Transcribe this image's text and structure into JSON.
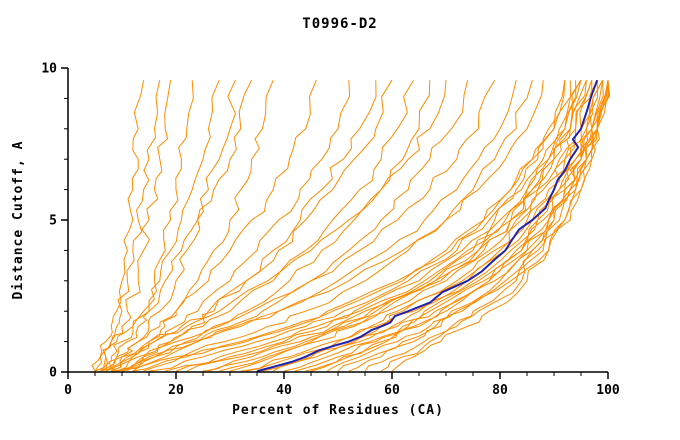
{
  "title": "T0996-D2",
  "chart_data": {
    "type": "line",
    "title": "T0996-D2",
    "xlabel": "Percent of Residues (CA)",
    "ylabel": "Distance Cutoff, A",
    "xlim": [
      0,
      100
    ],
    "ylim": [
      0,
      10
    ],
    "x_ticks": [
      0,
      20,
      40,
      60,
      80,
      100
    ],
    "y_ticks": [
      0,
      5,
      10
    ],
    "legend_position": "none",
    "grid": false,
    "series_color": "#ff8c00",
    "highlight_color": "#2222aa",
    "y_grid": [
      0,
      0.5,
      1,
      1.5,
      2,
      3,
      4,
      5,
      6,
      7,
      8,
      9.6
    ],
    "models": [
      [
        5,
        6,
        7,
        8,
        9,
        10,
        11,
        12,
        12,
        13,
        13,
        14
      ],
      [
        6,
        7,
        8,
        9,
        10,
        11,
        12,
        13,
        14,
        15,
        16,
        17
      ],
      [
        5,
        6,
        8,
        10,
        11,
        13,
        14,
        15,
        16,
        17,
        18,
        19
      ],
      [
        7,
        9,
        11,
        13,
        15,
        16,
        18,
        19,
        20,
        21,
        22,
        23
      ],
      [
        6,
        8,
        10,
        12,
        14,
        17,
        19,
        21,
        23,
        25,
        26,
        28
      ],
      [
        8,
        10,
        13,
        15,
        17,
        20,
        22,
        24,
        26,
        28,
        30,
        31
      ],
      [
        5,
        7,
        9,
        12,
        15,
        18,
        21,
        24,
        27,
        30,
        32,
        34
      ],
      [
        9,
        12,
        15,
        18,
        20,
        24,
        27,
        30,
        32,
        34,
        36,
        38
      ],
      [
        6,
        9,
        13,
        17,
        20,
        26,
        30,
        34,
        38,
        41,
        44,
        46
      ],
      [
        8,
        12,
        16,
        20,
        24,
        30,
        35,
        39,
        43,
        47,
        50,
        52
      ],
      [
        10,
        14,
        19,
        23,
        27,
        33,
        38,
        43,
        47,
        51,
        54,
        57
      ],
      [
        7,
        11,
        16,
        21,
        26,
        33,
        39,
        44,
        49,
        53,
        57,
        60
      ],
      [
        9,
        14,
        19,
        25,
        30,
        38,
        44,
        49,
        54,
        58,
        61,
        64
      ],
      [
        11,
        16,
        22,
        28,
        33,
        41,
        47,
        53,
        58,
        62,
        65,
        67
      ],
      [
        6,
        10,
        15,
        22,
        28,
        37,
        45,
        52,
        58,
        63,
        67,
        70
      ],
      [
        12,
        18,
        24,
        30,
        36,
        45,
        52,
        58,
        63,
        67,
        71,
        74
      ],
      [
        8,
        13,
        20,
        27,
        34,
        45,
        54,
        61,
        67,
        72,
        76,
        79
      ],
      [
        10,
        16,
        24,
        32,
        39,
        50,
        59,
        66,
        72,
        76,
        80,
        83
      ],
      [
        14,
        21,
        29,
        37,
        44,
        55,
        63,
        70,
        75,
        79,
        83,
        86
      ],
      [
        9,
        15,
        23,
        31,
        39,
        52,
        62,
        70,
        76,
        81,
        85,
        88
      ],
      [
        20,
        30,
        40,
        48,
        54,
        66,
        74,
        80,
        85,
        89,
        92,
        95
      ],
      [
        25,
        34,
        43,
        50,
        56,
        68,
        76,
        82,
        86,
        90,
        93,
        96
      ],
      [
        30,
        38,
        46,
        53,
        59,
        70,
        78,
        83,
        87,
        91,
        94,
        97
      ],
      [
        33,
        42,
        50,
        57,
        62,
        73,
        80,
        85,
        89,
        92,
        95,
        98
      ],
      [
        36,
        45,
        53,
        60,
        65,
        75,
        82,
        87,
        91,
        94,
        96,
        99
      ],
      [
        40,
        48,
        56,
        62,
        67,
        77,
        84,
        88,
        92,
        95,
        97,
        99
      ],
      [
        45,
        52,
        59,
        65,
        70,
        79,
        85,
        89,
        93,
        95,
        97,
        100
      ],
      [
        50,
        56,
        62,
        68,
        72,
        81,
        86,
        90,
        93,
        96,
        98,
        100
      ],
      [
        55,
        60,
        66,
        71,
        75,
        83,
        88,
        92,
        94,
        96,
        98,
        100
      ],
      [
        60,
        64,
        69,
        74,
        78,
        85,
        89,
        93,
        95,
        97,
        98,
        100
      ],
      [
        18,
        28,
        38,
        46,
        53,
        65,
        73,
        79,
        84,
        88,
        91,
        94
      ],
      [
        22,
        32,
        41,
        49,
        55,
        67,
        75,
        81,
        85,
        89,
        92,
        95
      ],
      [
        28,
        37,
        45,
        52,
        58,
        69,
        77,
        82,
        87,
        90,
        93,
        96
      ],
      [
        32,
        41,
        49,
        56,
        61,
        72,
        79,
        84,
        88,
        92,
        94,
        97
      ],
      [
        38,
        46,
        54,
        61,
        66,
        76,
        83,
        87,
        91,
        94,
        96,
        98
      ],
      [
        42,
        50,
        57,
        63,
        68,
        78,
        84,
        89,
        92,
        95,
        97,
        99
      ],
      [
        48,
        54,
        61,
        67,
        71,
        80,
        86,
        90,
        93,
        96,
        98,
        100
      ],
      [
        52,
        58,
        64,
        69,
        73,
        82,
        87,
        91,
        94,
        96,
        98,
        100
      ],
      [
        15,
        25,
        35,
        44,
        51,
        63,
        72,
        78,
        83,
        87,
        90,
        93
      ],
      [
        12,
        22,
        33,
        42,
        49,
        62,
        71,
        77,
        82,
        86,
        90,
        92
      ],
      [
        35,
        44,
        52,
        58,
        64,
        74,
        81,
        86,
        90,
        93,
        95,
        97
      ],
      [
        26,
        36,
        44,
        51,
        57,
        68,
        76,
        82,
        86,
        90,
        93,
        95
      ],
      [
        44,
        51,
        58,
        64,
        69,
        78,
        85,
        89,
        92,
        95,
        97,
        99
      ],
      [
        58,
        62,
        67,
        72,
        76,
        84,
        89,
        92,
        95,
        97,
        98,
        100
      ],
      [
        8,
        20,
        32,
        41,
        48,
        61,
        70,
        77,
        82,
        86,
        89,
        92
      ]
    ],
    "highlight_model": [
      35,
      44,
      52,
      58,
      63,
      74,
      81,
      86,
      90,
      93,
      95,
      98
    ]
  }
}
